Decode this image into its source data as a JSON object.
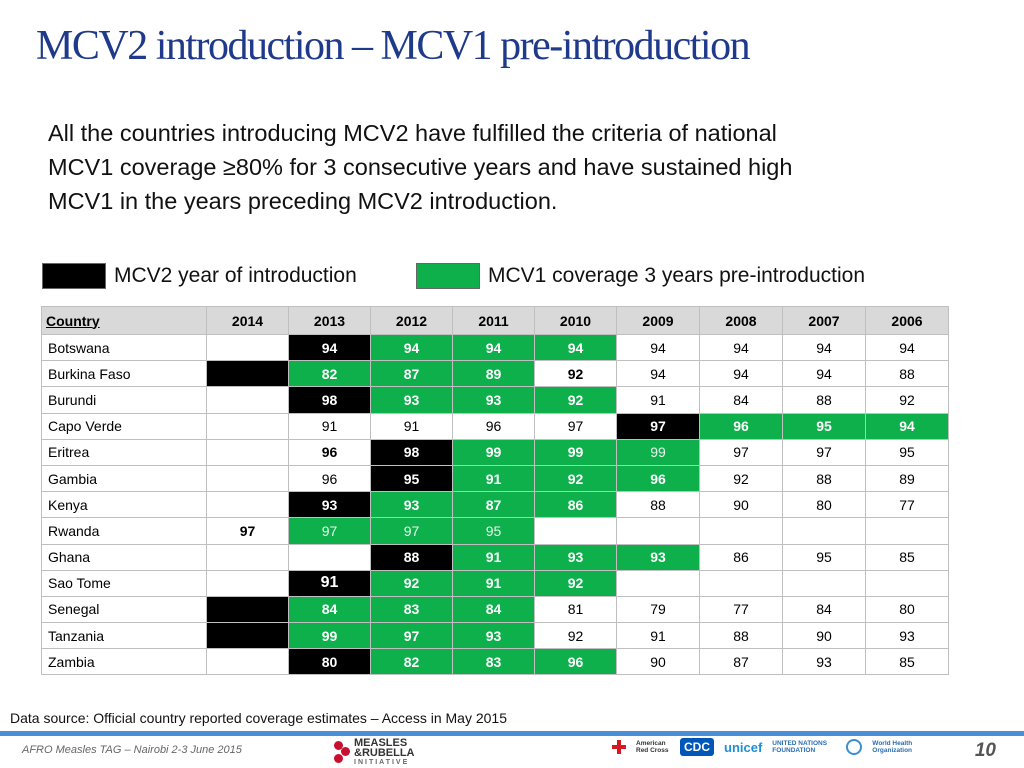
{
  "title": "MCV2 introduction – MCV1 pre-introduction",
  "intro": "All the countries introducing MCV2 have fulfilled the criteria of national MCV1 coverage ≥80% for 3 consecutive years and have sustained high MCV1 in the years preceding MCV2 introduction.",
  "legend": {
    "intro_label": "MCV2 year of introduction",
    "intro_color": "#000000",
    "pre_label": "MCV1 coverage 3 years pre-introduction",
    "pre_color": "#0db04b"
  },
  "table": {
    "headers": [
      "Country",
      "2014",
      "2013",
      "2012",
      "2011",
      "2010",
      "2009",
      "2008",
      "2007",
      "2006"
    ],
    "rows": [
      {
        "country": "Botswana",
        "cells": [
          {
            "v": "",
            "s": "plain"
          },
          {
            "v": "94",
            "s": "black"
          },
          {
            "v": "94",
            "s": "green"
          },
          {
            "v": "94",
            "s": "green"
          },
          {
            "v": "94",
            "s": "green"
          },
          {
            "v": "94",
            "s": "plain"
          },
          {
            "v": "94",
            "s": "plain"
          },
          {
            "v": "94",
            "s": "plain"
          },
          {
            "v": "94",
            "s": "plain"
          }
        ]
      },
      {
        "country": "Burkina Faso",
        "cells": [
          {
            "v": "",
            "s": "black"
          },
          {
            "v": "82",
            "s": "green"
          },
          {
            "v": "87",
            "s": "green"
          },
          {
            "v": "89",
            "s": "green"
          },
          {
            "v": "92",
            "s": "bold"
          },
          {
            "v": "94",
            "s": "plain"
          },
          {
            "v": "94",
            "s": "plain"
          },
          {
            "v": "94",
            "s": "plain"
          },
          {
            "v": "88",
            "s": "plain"
          }
        ]
      },
      {
        "country": "Burundi",
        "cells": [
          {
            "v": "",
            "s": "plain"
          },
          {
            "v": "98",
            "s": "black"
          },
          {
            "v": "93",
            "s": "green"
          },
          {
            "v": "93",
            "s": "green"
          },
          {
            "v": "92",
            "s": "green"
          },
          {
            "v": "91",
            "s": "plain"
          },
          {
            "v": "84",
            "s": "plain"
          },
          {
            "v": "88",
            "s": "plain"
          },
          {
            "v": "92",
            "s": "plain"
          }
        ]
      },
      {
        "country": "Capo Verde",
        "cells": [
          {
            "v": "",
            "s": "plain"
          },
          {
            "v": "91",
            "s": "plain"
          },
          {
            "v": "91",
            "s": "plain"
          },
          {
            "v": "96",
            "s": "plain"
          },
          {
            "v": "97",
            "s": "plain"
          },
          {
            "v": "97",
            "s": "black"
          },
          {
            "v": "96",
            "s": "green"
          },
          {
            "v": "95",
            "s": "green"
          },
          {
            "v": "94",
            "s": "green"
          }
        ]
      },
      {
        "country": "Eritrea",
        "cells": [
          {
            "v": "",
            "s": "plain"
          },
          {
            "v": "96",
            "s": "bold"
          },
          {
            "v": "98",
            "s": "black"
          },
          {
            "v": "99",
            "s": "green"
          },
          {
            "v": "99",
            "s": "green"
          },
          {
            "v": "99",
            "s": "green-lite"
          },
          {
            "v": "97",
            "s": "plain"
          },
          {
            "v": "97",
            "s": "plain"
          },
          {
            "v": "95",
            "s": "plain"
          }
        ]
      },
      {
        "country": "Gambia",
        "cells": [
          {
            "v": "",
            "s": "plain"
          },
          {
            "v": "96",
            "s": "plain"
          },
          {
            "v": "95",
            "s": "black"
          },
          {
            "v": "91",
            "s": "green"
          },
          {
            "v": "92",
            "s": "green"
          },
          {
            "v": "96",
            "s": "green"
          },
          {
            "v": "92",
            "s": "plain"
          },
          {
            "v": "88",
            "s": "plain"
          },
          {
            "v": "89",
            "s": "plain"
          }
        ]
      },
      {
        "country": "Kenya",
        "cells": [
          {
            "v": "",
            "s": "plain"
          },
          {
            "v": "93",
            "s": "black"
          },
          {
            "v": "93",
            "s": "green"
          },
          {
            "v": "87",
            "s": "green"
          },
          {
            "v": "86",
            "s": "green"
          },
          {
            "v": "88",
            "s": "plain"
          },
          {
            "v": "90",
            "s": "plain"
          },
          {
            "v": "80",
            "s": "plain"
          },
          {
            "v": "77",
            "s": "plain"
          }
        ]
      },
      {
        "country": "Rwanda",
        "cells": [
          {
            "v": "97",
            "s": "bold"
          },
          {
            "v": "97",
            "s": "green-lite"
          },
          {
            "v": "97",
            "s": "green-lite"
          },
          {
            "v": "95",
            "s": "green-lite"
          },
          {
            "v": "",
            "s": "plain"
          },
          {
            "v": "",
            "s": "plain"
          },
          {
            "v": "",
            "s": "plain"
          },
          {
            "v": "",
            "s": "plain"
          },
          {
            "v": "",
            "s": "plain"
          }
        ]
      },
      {
        "country": "Ghana",
        "cells": [
          {
            "v": "",
            "s": "plain"
          },
          {
            "v": "",
            "s": "plain"
          },
          {
            "v": "88",
            "s": "black"
          },
          {
            "v": "91",
            "s": "green"
          },
          {
            "v": "93",
            "s": "green"
          },
          {
            "v": "93",
            "s": "green"
          },
          {
            "v": "86",
            "s": "plain"
          },
          {
            "v": "95",
            "s": "plain"
          },
          {
            "v": "85",
            "s": "plain"
          }
        ]
      },
      {
        "country": "Sao Tome",
        "cells": [
          {
            "v": "",
            "s": "plain"
          },
          {
            "v": "91",
            "s": "black-big"
          },
          {
            "v": "92",
            "s": "green"
          },
          {
            "v": "91",
            "s": "green"
          },
          {
            "v": "92",
            "s": "green"
          },
          {
            "v": "",
            "s": "plain"
          },
          {
            "v": "",
            "s": "plain"
          },
          {
            "v": "",
            "s": "plain"
          },
          {
            "v": "",
            "s": "plain"
          }
        ]
      },
      {
        "country": "Senegal",
        "cells": [
          {
            "v": "",
            "s": "black"
          },
          {
            "v": "84",
            "s": "green"
          },
          {
            "v": "83",
            "s": "green"
          },
          {
            "v": "84",
            "s": "green"
          },
          {
            "v": "81",
            "s": "plain"
          },
          {
            "v": "79",
            "s": "plain"
          },
          {
            "v": "77",
            "s": "plain"
          },
          {
            "v": "84",
            "s": "plain"
          },
          {
            "v": "80",
            "s": "plain"
          }
        ]
      },
      {
        "country": "Tanzania",
        "cells": [
          {
            "v": "",
            "s": "black"
          },
          {
            "v": "99",
            "s": "green"
          },
          {
            "v": "97",
            "s": "green"
          },
          {
            "v": "93",
            "s": "green"
          },
          {
            "v": "92",
            "s": "plain"
          },
          {
            "v": "91",
            "s": "plain"
          },
          {
            "v": "88",
            "s": "plain"
          },
          {
            "v": "90",
            "s": "plain"
          },
          {
            "v": "93",
            "s": "plain"
          }
        ]
      },
      {
        "country": "Zambia",
        "cells": [
          {
            "v": "",
            "s": "plain"
          },
          {
            "v": "80",
            "s": "black"
          },
          {
            "v": "82",
            "s": "green"
          },
          {
            "v": "83",
            "s": "green"
          },
          {
            "v": "96",
            "s": "green"
          },
          {
            "v": "90",
            "s": "plain"
          },
          {
            "v": "87",
            "s": "plain"
          },
          {
            "v": "93",
            "s": "plain"
          },
          {
            "v": "85",
            "s": "plain"
          }
        ]
      }
    ]
  },
  "source": "Data source: Official country reported coverage estimates – Access in May 2015",
  "footer": {
    "event": "AFRO Measles TAG – Nairobi 2-3 June 2015",
    "page_number": "10",
    "logo_mr": {
      "line1": "MEASLES",
      "line2": "&RUBELLA",
      "line3": "INITIATIVE",
      "icon": "measles-rubella-logo-icon"
    },
    "partners": [
      {
        "name": "American Red Cross",
        "icon": "red-cross-icon"
      },
      {
        "name": "CDC"
      },
      {
        "name": "unicef"
      },
      {
        "name": "UNITED NATIONS FOUNDATION"
      },
      {
        "name": "World Health Organization",
        "icon": "who-emblem-icon"
      }
    ]
  }
}
